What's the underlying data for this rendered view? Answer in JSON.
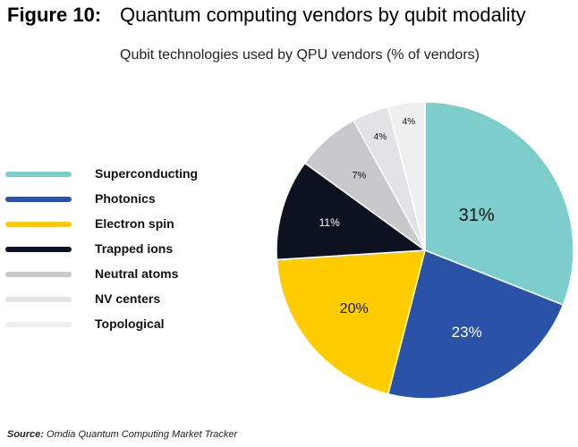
{
  "header": {
    "figure_label": "Figure 10:",
    "title": "Quantum computing vendors by qubit modality"
  },
  "source": {
    "label": "Source:",
    "text": "Omdia Quantum Computing Market Tracker"
  },
  "chart_data": {
    "type": "pie",
    "title": "Qubit technologies used by QPU vendors (% of vendors)",
    "legend_position": "left",
    "slices": [
      {
        "name": "Superconducting",
        "value": 31,
        "label": "31%",
        "color": "#7ecdcd",
        "text_color": "#111111"
      },
      {
        "name": "Photonics",
        "value": 23,
        "label": "23%",
        "color": "#2a52a6",
        "text_color": "#ffffff"
      },
      {
        "name": "Electron spin",
        "value": 20,
        "label": "20%",
        "color": "#ffcc00",
        "text_color": "#111111"
      },
      {
        "name": "Trapped ions",
        "value": 11,
        "label": "11%",
        "color": "#0c1220",
        "text_color": "#ffffff"
      },
      {
        "name": "Neutral atoms",
        "value": 7,
        "label": "7%",
        "color": "#c9c9cb",
        "text_color": "#111111"
      },
      {
        "name": "NV centers",
        "value": 4,
        "label": "4%",
        "color": "#e3e3e5",
        "text_color": "#111111"
      },
      {
        "name": "Topological",
        "value": 4,
        "label": "4%",
        "color": "#efefef",
        "text_color": "#111111"
      }
    ]
  }
}
